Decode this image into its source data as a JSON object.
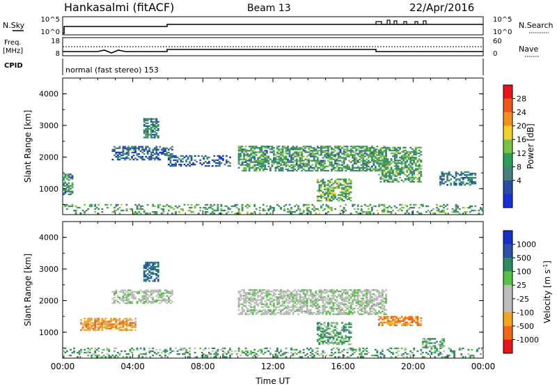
{
  "header": {
    "station": "Hankasalmi (fitACF)",
    "beam": "Beam 13",
    "date": "22/Apr/2016"
  },
  "top_panels": {
    "nsky_label": "N.Sky",
    "nsky_ticks": [
      "10^5",
      "10^0"
    ],
    "nsearch_label": "N.Search",
    "nsearch_ticks": [
      "10^5",
      "10^0"
    ],
    "freq_label_1": "Freq.",
    "freq_label_2": "[MHz]",
    "freq_ticks": [
      "18",
      "8"
    ],
    "nave_label": "Nave",
    "nave_ticks": [
      "60",
      "0"
    ],
    "cpid_label": "CPID",
    "cpid_text": "normal (fast stereo) 153"
  },
  "power_colorbar": {
    "label": "Power [dB]",
    "ticks": [
      "28",
      "24",
      "20",
      "16",
      "12",
      "8",
      "4"
    ],
    "colors": [
      "#e8141b",
      "#ee5a14",
      "#f3901c",
      "#f4d02a",
      "#7bc142",
      "#2f9e5a",
      "#46807a",
      "#2a4ea8",
      "#1830d8"
    ]
  },
  "velocity_colorbar": {
    "label": "Velocity [m s",
    "label_sup": "-1",
    "label_end": "]",
    "ticks": [
      "1000",
      "500",
      "100",
      "25",
      "-25",
      "-100",
      "-500",
      "-1000"
    ],
    "colors": [
      "#1830c8",
      "#2b52a8",
      "#2f8a62",
      "#58c248",
      "#bcbcbc",
      "#bcbcbc",
      "#f2a61e",
      "#f2661a",
      "#e8141b"
    ]
  },
  "chart_data": [
    {
      "type": "heatmap",
      "title": "Power",
      "ylabel": "Slant Range [km]",
      "xlim": [
        "00:00",
        "00:00"
      ],
      "ylim": [
        180,
        4500
      ],
      "yticks": [
        "4000",
        "3000",
        "2000",
        "1000"
      ],
      "zlabel": "Power [dB]",
      "zlim": [
        0,
        30
      ],
      "bands": [
        {
          "t_start": 0.0,
          "t_end": 24.0,
          "r_start": 200,
          "r_end": 500,
          "density": 0.28,
          "level": 12
        },
        {
          "t_start": 0.0,
          "t_end": 0.6,
          "r_start": 800,
          "r_end": 1450,
          "density": 0.65,
          "level": 10
        },
        {
          "t_start": 2.8,
          "t_end": 6.2,
          "r_start": 1900,
          "r_end": 2350,
          "density": 0.55,
          "level": 6
        },
        {
          "t_start": 4.6,
          "t_end": 5.4,
          "r_start": 2600,
          "r_end": 3200,
          "density": 0.6,
          "level": 9
        },
        {
          "t_start": 6.0,
          "t_end": 9.5,
          "r_start": 1700,
          "r_end": 2050,
          "density": 0.35,
          "level": 6
        },
        {
          "t_start": 10.0,
          "t_end": 18.5,
          "r_start": 1550,
          "r_end": 2350,
          "density": 0.6,
          "level": 11
        },
        {
          "t_start": 14.5,
          "t_end": 16.5,
          "r_start": 600,
          "r_end": 1300,
          "density": 0.55,
          "level": 13
        },
        {
          "t_start": 18.0,
          "t_end": 20.5,
          "r_start": 1200,
          "r_end": 2300,
          "density": 0.55,
          "level": 12
        },
        {
          "t_start": 21.5,
          "t_end": 23.6,
          "r_start": 1100,
          "r_end": 1550,
          "density": 0.55,
          "level": 8
        }
      ]
    },
    {
      "type": "heatmap",
      "title": "Velocity",
      "ylabel": "Slant Range [km]",
      "xlabel": "Time UT",
      "xlim": [
        "00:00",
        "00:00"
      ],
      "xticks": [
        "00:00",
        "04:00",
        "08:00",
        "12:00",
        "16:00",
        "20:00",
        "00:00"
      ],
      "ylim": [
        180,
        4500
      ],
      "yticks": [
        "4000",
        "3000",
        "2000",
        "1000"
      ],
      "zlabel": "Velocity [m s-1]",
      "zlim": [
        -1000,
        1000
      ],
      "bands": [
        {
          "t_start": 0.0,
          "t_end": 24.0,
          "r_start": 200,
          "r_end": 500,
          "density": 0.28,
          "level": 60
        },
        {
          "t_start": 1.0,
          "t_end": 4.2,
          "r_start": 1050,
          "r_end": 1450,
          "density": 0.6,
          "level": -200
        },
        {
          "t_start": 2.8,
          "t_end": 6.2,
          "r_start": 1900,
          "r_end": 2350,
          "density": 0.55,
          "level": 0
        },
        {
          "t_start": 4.6,
          "t_end": 5.4,
          "r_start": 2600,
          "r_end": 3200,
          "density": 0.6,
          "level": 300
        },
        {
          "t_start": 10.0,
          "t_end": 18.5,
          "r_start": 1550,
          "r_end": 2350,
          "density": 0.6,
          "level": 0
        },
        {
          "t_start": 14.5,
          "t_end": 16.5,
          "r_start": 600,
          "r_end": 1300,
          "density": 0.55,
          "level": 60
        },
        {
          "t_start": 18.0,
          "t_end": 20.5,
          "r_start": 1200,
          "r_end": 1500,
          "density": 0.55,
          "level": -300
        },
        {
          "t_start": 20.5,
          "t_end": 21.8,
          "r_start": 500,
          "r_end": 800,
          "density": 0.5,
          "level": 60
        }
      ]
    }
  ]
}
